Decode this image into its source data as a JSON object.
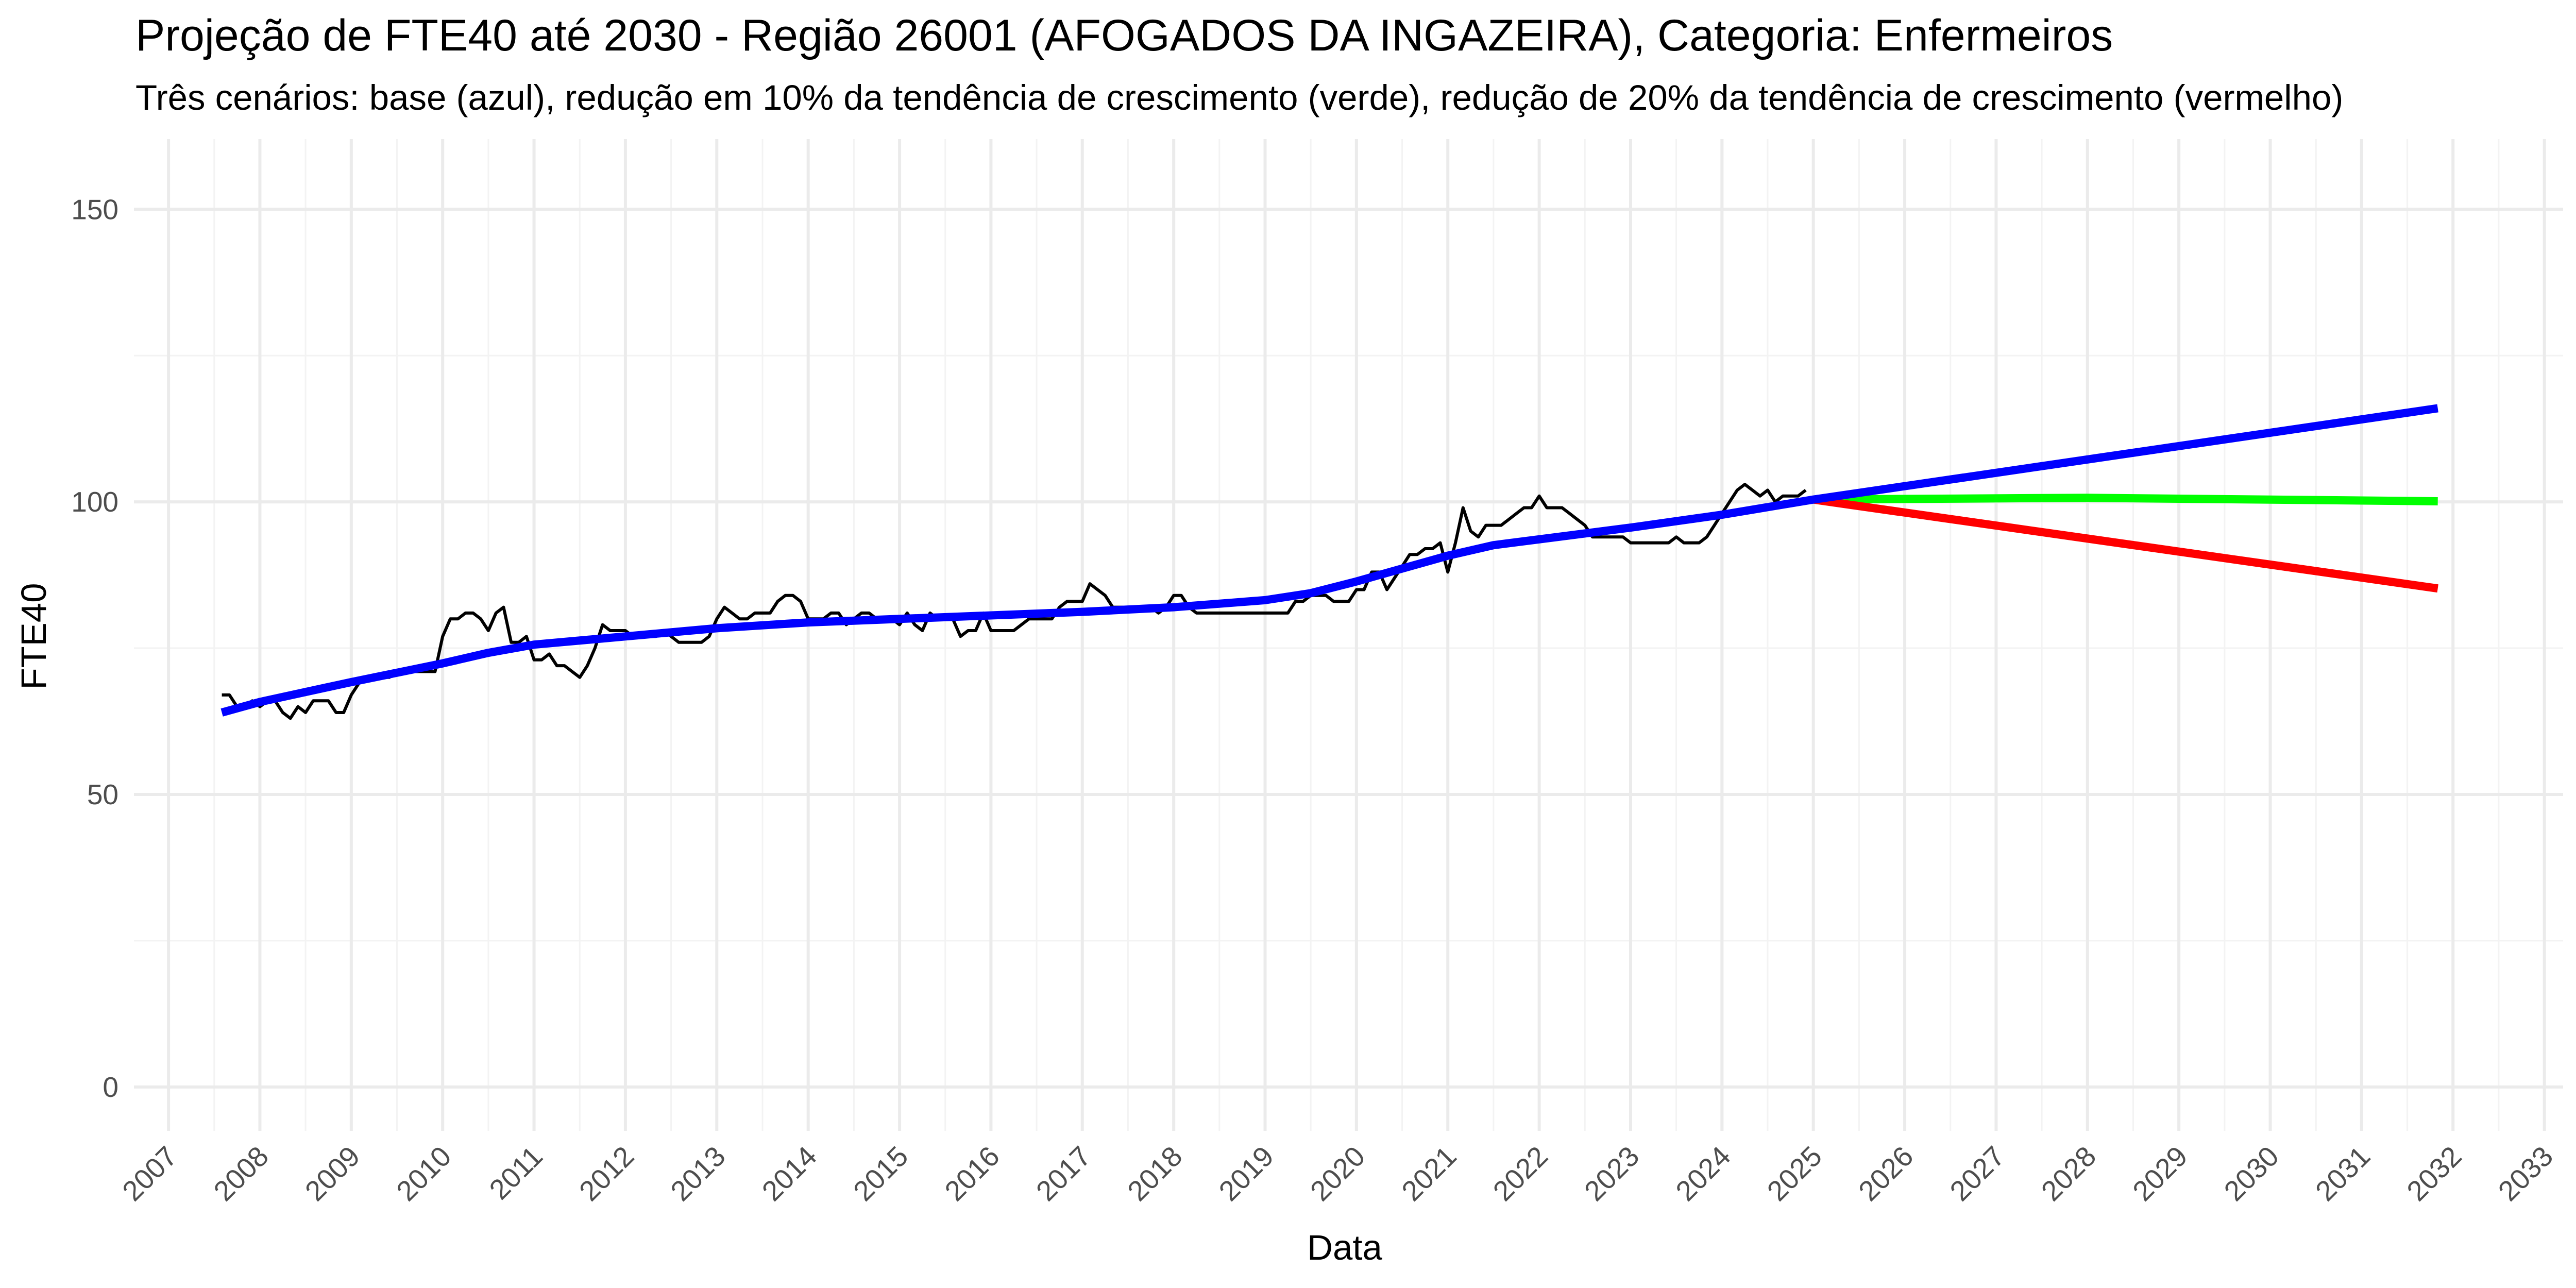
{
  "chart_data": {
    "type": "line",
    "title": "Projeção de FTE40 até 2030 - Região 26001 (AFOGADOS DA INGAZEIRA), Categoria: Enfermeiros",
    "subtitle": "Três cenários: base (azul), redução em 10% da tendência de crescimento (verde), redução de 20% da tendência de crescimento (vermelho)",
    "xlabel": "Data",
    "ylabel": "FTE40",
    "x_ticks": [
      "2007",
      "2008",
      "2009",
      "2010",
      "2011",
      "2012",
      "2013",
      "2014",
      "2015",
      "2016",
      "2017",
      "2018",
      "2019",
      "2020",
      "2021",
      "2022",
      "2023",
      "2024",
      "2025",
      "2026",
      "2027",
      "2028",
      "2029",
      "2030",
      "2031",
      "2032",
      "2033"
    ],
    "y_ticks": [
      0,
      50,
      100,
      150
    ],
    "xlim": [
      "2006-08-15",
      "2033-03-15"
    ],
    "ylim": [
      -7.5,
      162
    ],
    "grid": true,
    "colors": {
      "observed": "#000000",
      "base": "#0000ff",
      "reduction_10": "#00ff00",
      "reduction_20": "#ff0000"
    },
    "series": [
      {
        "key": "observed",
        "points": [
          [
            "2007-08",
            67
          ],
          [
            "2007-09",
            67
          ],
          [
            "2007-10",
            65
          ],
          [
            "2007-11",
            65
          ],
          [
            "2007-12",
            66
          ],
          [
            "2008-01",
            65
          ],
          [
            "2008-02",
            66
          ],
          [
            "2008-03",
            66
          ],
          [
            "2008-04",
            64
          ],
          [
            "2008-05",
            63
          ],
          [
            "2008-06",
            65
          ],
          [
            "2008-07",
            64
          ],
          [
            "2008-08",
            66
          ],
          [
            "2008-09",
            66
          ],
          [
            "2008-10",
            66
          ],
          [
            "2008-11",
            64
          ],
          [
            "2008-12",
            64
          ],
          [
            "2009-01",
            67
          ],
          [
            "2009-02",
            69
          ],
          [
            "2009-03",
            70
          ],
          [
            "2009-04",
            70
          ],
          [
            "2009-05",
            70
          ],
          [
            "2009-06",
            70
          ],
          [
            "2009-07",
            71
          ],
          [
            "2009-08",
            71
          ],
          [
            "2009-09",
            71
          ],
          [
            "2009-10",
            71
          ],
          [
            "2009-11",
            71
          ],
          [
            "2009-12",
            71
          ],
          [
            "2010-01",
            77
          ],
          [
            "2010-02",
            80
          ],
          [
            "2010-03",
            80
          ],
          [
            "2010-04",
            81
          ],
          [
            "2010-05",
            81
          ],
          [
            "2010-06",
            80
          ],
          [
            "2010-07",
            78
          ],
          [
            "2010-08",
            81
          ],
          [
            "2010-09",
            82
          ],
          [
            "2010-10",
            76
          ],
          [
            "2010-11",
            76
          ],
          [
            "2010-12",
            77
          ],
          [
            "2011-01",
            73
          ],
          [
            "2011-02",
            73
          ],
          [
            "2011-03",
            74
          ],
          [
            "2011-04",
            72
          ],
          [
            "2011-05",
            72
          ],
          [
            "2011-06",
            71
          ],
          [
            "2011-07",
            70
          ],
          [
            "2011-08",
            72
          ],
          [
            "2011-09",
            75
          ],
          [
            "2011-10",
            79
          ],
          [
            "2011-11",
            78
          ],
          [
            "2011-12",
            78
          ],
          [
            "2012-01",
            78
          ],
          [
            "2012-02",
            77
          ],
          [
            "2012-03",
            77
          ],
          [
            "2012-04",
            77
          ],
          [
            "2012-05",
            77
          ],
          [
            "2012-06",
            78
          ],
          [
            "2012-07",
            77
          ],
          [
            "2012-08",
            76
          ],
          [
            "2012-09",
            76
          ],
          [
            "2012-10",
            76
          ],
          [
            "2012-11",
            76
          ],
          [
            "2012-12",
            77
          ],
          [
            "2013-01",
            80
          ],
          [
            "2013-02",
            82
          ],
          [
            "2013-03",
            81
          ],
          [
            "2013-04",
            80
          ],
          [
            "2013-05",
            80
          ],
          [
            "2013-06",
            81
          ],
          [
            "2013-07",
            81
          ],
          [
            "2013-08",
            81
          ],
          [
            "2013-09",
            83
          ],
          [
            "2013-10",
            84
          ],
          [
            "2013-11",
            84
          ],
          [
            "2013-12",
            83
          ],
          [
            "2014-01",
            80
          ],
          [
            "2014-02",
            80
          ],
          [
            "2014-03",
            80
          ],
          [
            "2014-04",
            81
          ],
          [
            "2014-05",
            81
          ],
          [
            "2014-06",
            79
          ],
          [
            "2014-07",
            80
          ],
          [
            "2014-08",
            81
          ],
          [
            "2014-09",
            81
          ],
          [
            "2014-10",
            80
          ],
          [
            "2014-11",
            80
          ],
          [
            "2014-12",
            80
          ],
          [
            "2015-01",
            79
          ],
          [
            "2015-02",
            81
          ],
          [
            "2015-03",
            79
          ],
          [
            "2015-04",
            78
          ],
          [
            "2015-05",
            81
          ],
          [
            "2015-06",
            80
          ],
          [
            "2015-07",
            80
          ],
          [
            "2015-08",
            80
          ],
          [
            "2015-09",
            77
          ],
          [
            "2015-10",
            78
          ],
          [
            "2015-11",
            78
          ],
          [
            "2015-12",
            81
          ],
          [
            "2016-01",
            78
          ],
          [
            "2016-02",
            78
          ],
          [
            "2016-03",
            78
          ],
          [
            "2016-04",
            78
          ],
          [
            "2016-05",
            79
          ],
          [
            "2016-06",
            80
          ],
          [
            "2016-07",
            80
          ],
          [
            "2016-08",
            80
          ],
          [
            "2016-09",
            80
          ],
          [
            "2016-10",
            82
          ],
          [
            "2016-11",
            83
          ],
          [
            "2016-12",
            83
          ],
          [
            "2017-01",
            83
          ],
          [
            "2017-02",
            86
          ],
          [
            "2017-03",
            85
          ],
          [
            "2017-04",
            84
          ],
          [
            "2017-05",
            82
          ],
          [
            "2017-06",
            82
          ],
          [
            "2017-07",
            82
          ],
          [
            "2017-08",
            82
          ],
          [
            "2017-09",
            82
          ],
          [
            "2017-10",
            82
          ],
          [
            "2017-11",
            81
          ],
          [
            "2017-12",
            82
          ],
          [
            "2018-01",
            84
          ],
          [
            "2018-02",
            84
          ],
          [
            "2018-03",
            82
          ],
          [
            "2018-04",
            81
          ],
          [
            "2018-05",
            81
          ],
          [
            "2018-06",
            81
          ],
          [
            "2018-07",
            81
          ],
          [
            "2018-08",
            81
          ],
          [
            "2018-09",
            81
          ],
          [
            "2018-10",
            81
          ],
          [
            "2018-11",
            81
          ],
          [
            "2018-12",
            81
          ],
          [
            "2019-01",
            81
          ],
          [
            "2019-02",
            81
          ],
          [
            "2019-03",
            81
          ],
          [
            "2019-04",
            81
          ],
          [
            "2019-05",
            83
          ],
          [
            "2019-06",
            83
          ],
          [
            "2019-07",
            84
          ],
          [
            "2019-08",
            84
          ],
          [
            "2019-09",
            84
          ],
          [
            "2019-10",
            83
          ],
          [
            "2019-11",
            83
          ],
          [
            "2019-12",
            83
          ],
          [
            "2020-01",
            85
          ],
          [
            "2020-02",
            85
          ],
          [
            "2020-03",
            88
          ],
          [
            "2020-04",
            88
          ],
          [
            "2020-05",
            85
          ],
          [
            "2020-06",
            87
          ],
          [
            "2020-07",
            89
          ],
          [
            "2020-08",
            91
          ],
          [
            "2020-09",
            91
          ],
          [
            "2020-10",
            92
          ],
          [
            "2020-11",
            92
          ],
          [
            "2020-12",
            93
          ],
          [
            "2021-01",
            88
          ],
          [
            "2021-02",
            93
          ],
          [
            "2021-03",
            99
          ],
          [
            "2021-04",
            95
          ],
          [
            "2021-05",
            94
          ],
          [
            "2021-06",
            96
          ],
          [
            "2021-07",
            96
          ],
          [
            "2021-08",
            96
          ],
          [
            "2021-09",
            97
          ],
          [
            "2021-10",
            98
          ],
          [
            "2021-11",
            99
          ],
          [
            "2021-12",
            99
          ],
          [
            "2022-01",
            101
          ],
          [
            "2022-02",
            99
          ],
          [
            "2022-03",
            99
          ],
          [
            "2022-04",
            99
          ],
          [
            "2022-05",
            98
          ],
          [
            "2022-06",
            97
          ],
          [
            "2022-07",
            96
          ],
          [
            "2022-08",
            94
          ],
          [
            "2022-09",
            94
          ],
          [
            "2022-10",
            94
          ],
          [
            "2022-11",
            94
          ],
          [
            "2022-12",
            94
          ],
          [
            "2023-01",
            93
          ],
          [
            "2023-02",
            93
          ],
          [
            "2023-03",
            93
          ],
          [
            "2023-04",
            93
          ],
          [
            "2023-05",
            93
          ],
          [
            "2023-06",
            93
          ],
          [
            "2023-07",
            94
          ],
          [
            "2023-08",
            93
          ],
          [
            "2023-09",
            93
          ],
          [
            "2023-10",
            93
          ],
          [
            "2023-11",
            94
          ],
          [
            "2023-12",
            96
          ],
          [
            "2024-01",
            98
          ],
          [
            "2024-02",
            100
          ],
          [
            "2024-03",
            102
          ],
          [
            "2024-04",
            103
          ],
          [
            "2024-05",
            102
          ],
          [
            "2024-06",
            101
          ],
          [
            "2024-07",
            102
          ],
          [
            "2024-08",
            100
          ],
          [
            "2024-09",
            101
          ],
          [
            "2024-10",
            101
          ],
          [
            "2024-11",
            101
          ],
          [
            "2024-12",
            102
          ]
        ]
      },
      {
        "key": "base",
        "points": [
          [
            "2007-08",
            64
          ],
          [
            "2008-01",
            65.8
          ],
          [
            "2009-01",
            69.2
          ],
          [
            "2010-01",
            72.4
          ],
          [
            "2010-07",
            74.2
          ],
          [
            "2011-01",
            75.6
          ],
          [
            "2012-01",
            77.0
          ],
          [
            "2013-01",
            78.4
          ],
          [
            "2014-01",
            79.4
          ],
          [
            "2015-01",
            80.0
          ],
          [
            "2016-01",
            80.6
          ],
          [
            "2017-01",
            81.2
          ],
          [
            "2018-01",
            82.0
          ],
          [
            "2019-01",
            83.2
          ],
          [
            "2019-07",
            84.4
          ],
          [
            "2020-01",
            86.4
          ],
          [
            "2020-07",
            88.6
          ],
          [
            "2021-01",
            90.8
          ],
          [
            "2021-07",
            92.6
          ],
          [
            "2022-01",
            93.6
          ],
          [
            "2023-01",
            95.6
          ],
          [
            "2024-01",
            97.8
          ],
          [
            "2025-01",
            100.4
          ],
          [
            "2031-11",
            116
          ]
        ]
      },
      {
        "key": "reduction_10",
        "points": [
          [
            "2025-01",
            100.4
          ],
          [
            "2028-01",
            100.7
          ],
          [
            "2031-11",
            100.1
          ]
        ]
      },
      {
        "key": "reduction_20",
        "points": [
          [
            "2025-01",
            100.4
          ],
          [
            "2031-11",
            85.2
          ]
        ]
      }
    ]
  }
}
